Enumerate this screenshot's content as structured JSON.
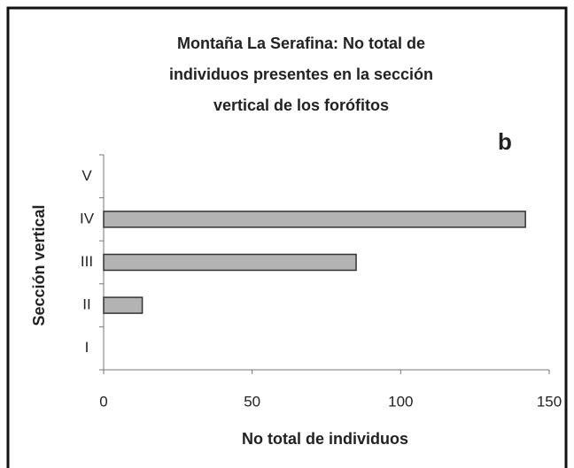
{
  "chart_data": {
    "type": "barh",
    "title": [
      "Montaña La Serafina: No total de",
      "individuos presentes en la sección",
      "vertical de los forófitos"
    ],
    "annotation": "b",
    "categories": [
      "I",
      "II",
      "III",
      "IV",
      "V"
    ],
    "values": [
      0,
      13,
      85,
      142,
      0
    ],
    "color": "#b3b3b3",
    "xlabel": "No total de individuos",
    "ylabel": "Sección vertical",
    "xlim": [
      0,
      150
    ],
    "xticks": [
      0,
      50,
      100,
      150
    ]
  }
}
